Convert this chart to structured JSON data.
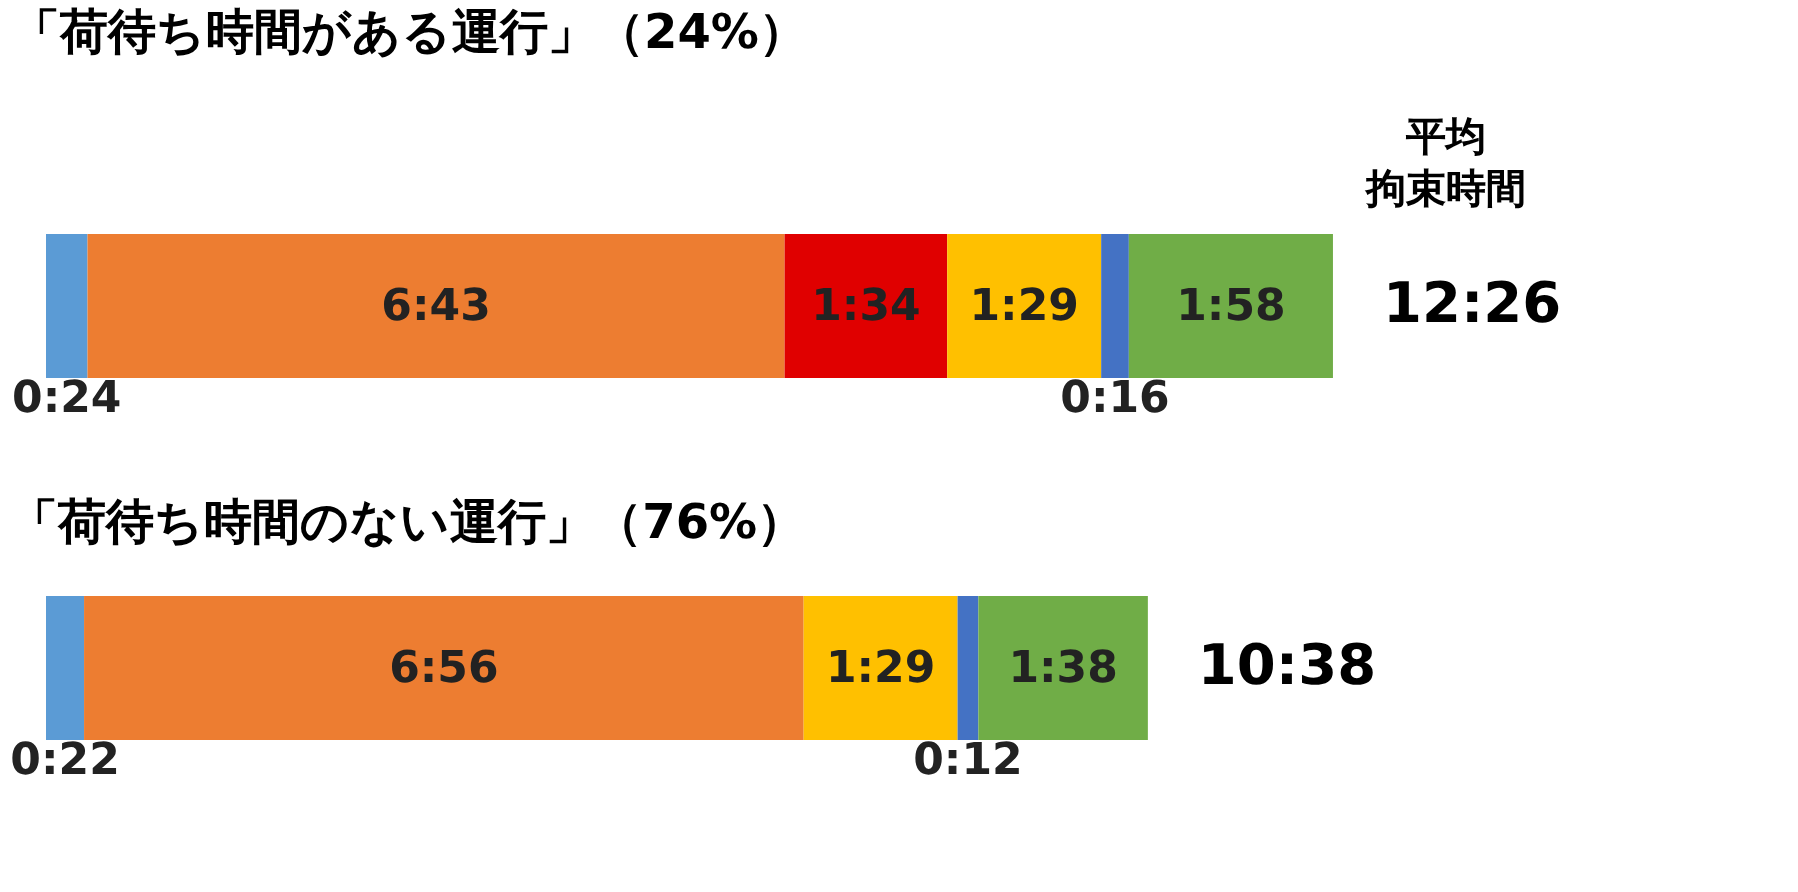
{
  "chart_data": [
    {
      "type": "bar",
      "orientation": "horizontal",
      "stacked": true,
      "title": "「荷待ち時間がある運行」（24%）",
      "categories": [
        null
      ],
      "tick_labels": false,
      "grid": false,
      "series": [
        {
          "color": "#5b9bd5",
          "values": [
            24
          ],
          "value_labels": [
            "0:24"
          ]
        },
        {
          "color": "#ed7d31",
          "values": [
            403
          ],
          "value_labels": [
            "6:43"
          ]
        },
        {
          "color": "#e00000",
          "values": [
            94
          ],
          "value_labels": [
            "1:34"
          ]
        },
        {
          "color": "#ffc000",
          "values": [
            89
          ],
          "value_labels": [
            "1:29"
          ]
        },
        {
          "color": "#4472c4",
          "values": [
            16
          ],
          "value_labels": [
            "0:16"
          ]
        },
        {
          "color": "#70ad47",
          "values": [
            118
          ],
          "value_labels": [
            "1:58"
          ]
        }
      ],
      "totals": [
        "12:26"
      ],
      "annotations": [
        "平均",
        "拘束時間"
      ]
    },
    {
      "type": "bar",
      "orientation": "horizontal",
      "stacked": true,
      "title": "「荷待ち時間のない運行」（76%）",
      "categories": [
        null
      ],
      "tick_labels": false,
      "grid": false,
      "series": [
        {
          "color": "#5b9bd5",
          "values": [
            22
          ],
          "value_labels": [
            "0:22"
          ]
        },
        {
          "color": "#ed7d31",
          "values": [
            416
          ],
          "value_labels": [
            "6:56"
          ]
        },
        {
          "color": "#ffc000",
          "values": [
            89
          ],
          "value_labels": [
            "1:29"
          ]
        },
        {
          "color": "#4472c4",
          "values": [
            12
          ],
          "value_labels": [
            "0:12"
          ]
        },
        {
          "color": "#70ad47",
          "values": [
            98
          ],
          "value_labels": [
            "1:38"
          ]
        }
      ],
      "totals": [
        "10:38"
      ]
    }
  ]
}
